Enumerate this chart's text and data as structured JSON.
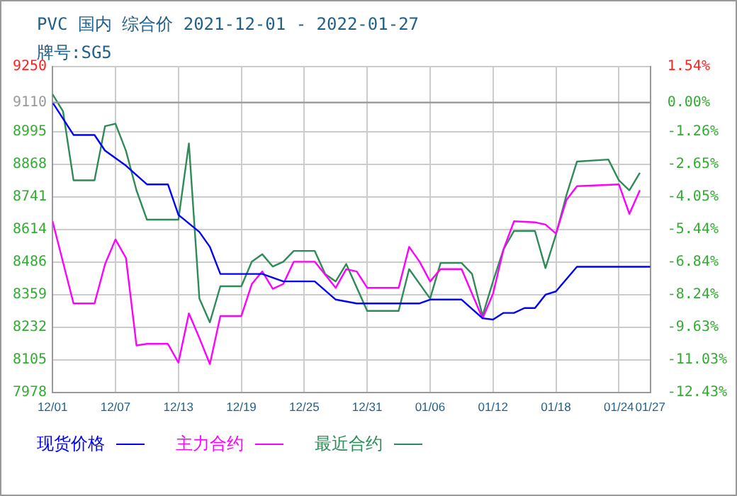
{
  "chart_data": {
    "type": "line",
    "title": "PVC 国内 综合价 2021-12-01 - 2022-01-27",
    "subtitle": "牌号:SG5",
    "xlim": [
      "2021-12-01",
      "2022-01-27"
    ],
    "xticks": [
      {
        "value": "2021-12-01",
        "label": "12/01"
      },
      {
        "value": "2021-12-07",
        "label": "12/07"
      },
      {
        "value": "2021-12-13",
        "label": "12/13"
      },
      {
        "value": "2021-12-19",
        "label": "12/19"
      },
      {
        "value": "2021-12-25",
        "label": "12/25"
      },
      {
        "value": "2021-12-31",
        "label": "12/31"
      },
      {
        "value": "2022-01-06",
        "label": "01/06"
      },
      {
        "value": "2022-01-12",
        "label": "01/12"
      },
      {
        "value": "2022-01-18",
        "label": "01/18"
      },
      {
        "value": "2022-01-24",
        "label": "01/24"
      },
      {
        "value": "2022-01-27",
        "label": "01/27"
      }
    ],
    "ylim": [
      7978,
      9250
    ],
    "yticks": [
      7978,
      8105,
      8232,
      8359,
      8486,
      8614,
      8741,
      8868,
      8995,
      9110,
      9250
    ],
    "y2lim": [
      -12.43,
      1.54
    ],
    "y2ticks": [
      {
        "value": -12.43,
        "label": "-12.43%"
      },
      {
        "value": -11.03,
        "label": "-11.03%"
      },
      {
        "value": -9.63,
        "label": "-9.63%"
      },
      {
        "value": -8.24,
        "label": "-8.24%"
      },
      {
        "value": -6.84,
        "label": "-6.84%"
      },
      {
        "value": -5.44,
        "label": "-5.44%"
      },
      {
        "value": -4.05,
        "label": "-4.05%"
      },
      {
        "value": -2.65,
        "label": "-2.65%"
      },
      {
        "value": -1.26,
        "label": "-1.26%"
      },
      {
        "value": 0,
        "label": "0.00%"
      },
      {
        "value": 1.54,
        "label": "1.54%"
      }
    ],
    "ref_lines": [
      {
        "axis": "y",
        "value": 9110,
        "color": "#999999"
      }
    ],
    "grid": true,
    "legend": "bottom",
    "marker": "none",
    "line_style": "solid",
    "series": [
      {
        "name": "现货价格",
        "color": "#0000ff",
        "x": [
          "2021-12-01",
          "2021-12-03",
          "2021-12-05",
          "2021-12-06",
          "2021-12-08",
          "2021-12-10",
          "2021-12-12",
          "2021-12-13",
          "2021-12-15",
          "2021-12-16",
          "2021-12-17",
          "2021-12-21",
          "2021-12-23",
          "2021-12-26",
          "2021-12-28",
          "2021-12-30",
          "2022-01-05",
          "2022-01-06",
          "2022-01-09",
          "2022-01-11",
          "2022-01-12",
          "2022-01-13",
          "2022-01-14",
          "2022-01-15",
          "2022-01-16",
          "2022-01-17",
          "2022-01-18",
          "2022-01-20",
          "2022-01-27"
        ],
        "values": [
          9110,
          8983,
          8983,
          8922,
          8863,
          8790,
          8790,
          8671,
          8604,
          8546,
          8440,
          8440,
          8411,
          8411,
          8340,
          8325,
          8325,
          8340,
          8340,
          8267,
          8262,
          8288,
          8288,
          8307,
          8307,
          8359,
          8372,
          8468,
          8468
        ]
      },
      {
        "name": "主力合约",
        "color": "#ff00ff",
        "x": [
          "2021-12-01",
          "2021-12-03",
          "2021-12-05",
          "2021-12-06",
          "2021-12-07",
          "2021-12-08",
          "2021-12-09",
          "2021-12-10",
          "2021-12-12",
          "2021-12-13",
          "2021-12-14",
          "2021-12-15",
          "2021-12-16",
          "2021-12-17",
          "2021-12-19",
          "2021-12-20",
          "2021-12-21",
          "2021-12-22",
          "2021-12-23",
          "2021-12-24",
          "2021-12-26",
          "2021-12-28",
          "2021-12-29",
          "2021-12-30",
          "2021-12-31",
          "2022-01-03",
          "2022-01-04",
          "2022-01-05",
          "2022-01-06",
          "2022-01-07",
          "2022-01-09",
          "2022-01-11",
          "2022-01-12",
          "2022-01-13",
          "2022-01-14",
          "2022-01-16",
          "2022-01-17",
          "2022-01-18",
          "2022-01-19",
          "2022-01-20",
          "2022-01-24",
          "2022-01-25",
          "2022-01-26"
        ],
        "values": [
          8646,
          8325,
          8325,
          8478,
          8575,
          8502,
          8161,
          8167,
          8167,
          8094,
          8286,
          8190,
          8088,
          8276,
          8276,
          8401,
          8450,
          8382,
          8401,
          8488,
          8488,
          8386,
          8459,
          8450,
          8386,
          8386,
          8546,
          8488,
          8411,
          8459,
          8459,
          8267,
          8363,
          8536,
          8646,
          8642,
          8633,
          8598,
          8729,
          8783,
          8790,
          8675,
          8767
        ]
      },
      {
        "name": "最近合约",
        "color": "#2e8b57",
        "x": [
          "2021-12-01",
          "2021-12-02",
          "2021-12-03",
          "2021-12-05",
          "2021-12-06",
          "2021-12-07",
          "2021-12-08",
          "2021-12-09",
          "2021-12-10",
          "2021-12-13",
          "2021-12-14",
          "2021-12-15",
          "2021-12-16",
          "2021-12-17",
          "2021-12-19",
          "2021-12-20",
          "2021-12-21",
          "2021-12-22",
          "2021-12-23",
          "2021-12-24",
          "2021-12-26",
          "2021-12-27",
          "2021-12-28",
          "2021-12-29",
          "2021-12-31",
          "2022-01-03",
          "2022-01-04",
          "2022-01-06",
          "2022-01-07",
          "2022-01-09",
          "2022-01-10",
          "2022-01-11",
          "2022-01-12",
          "2022-01-13",
          "2022-01-14",
          "2022-01-16",
          "2022-01-17",
          "2022-01-18",
          "2022-01-19",
          "2022-01-20",
          "2022-01-23",
          "2022-01-24",
          "2022-01-25",
          "2022-01-26"
        ],
        "values": [
          9142,
          9075,
          8806,
          8806,
          9017,
          9027,
          8921,
          8767,
          8652,
          8652,
          8950,
          8344,
          8251,
          8392,
          8392,
          8488,
          8517,
          8469,
          8488,
          8530,
          8530,
          8440,
          8411,
          8479,
          8296,
          8296,
          8459,
          8344,
          8483,
          8483,
          8440,
          8277,
          8411,
          8536,
          8608,
          8608,
          8463,
          8594,
          8748,
          8879,
          8887,
          8806,
          8767,
          8835
        ]
      }
    ]
  }
}
